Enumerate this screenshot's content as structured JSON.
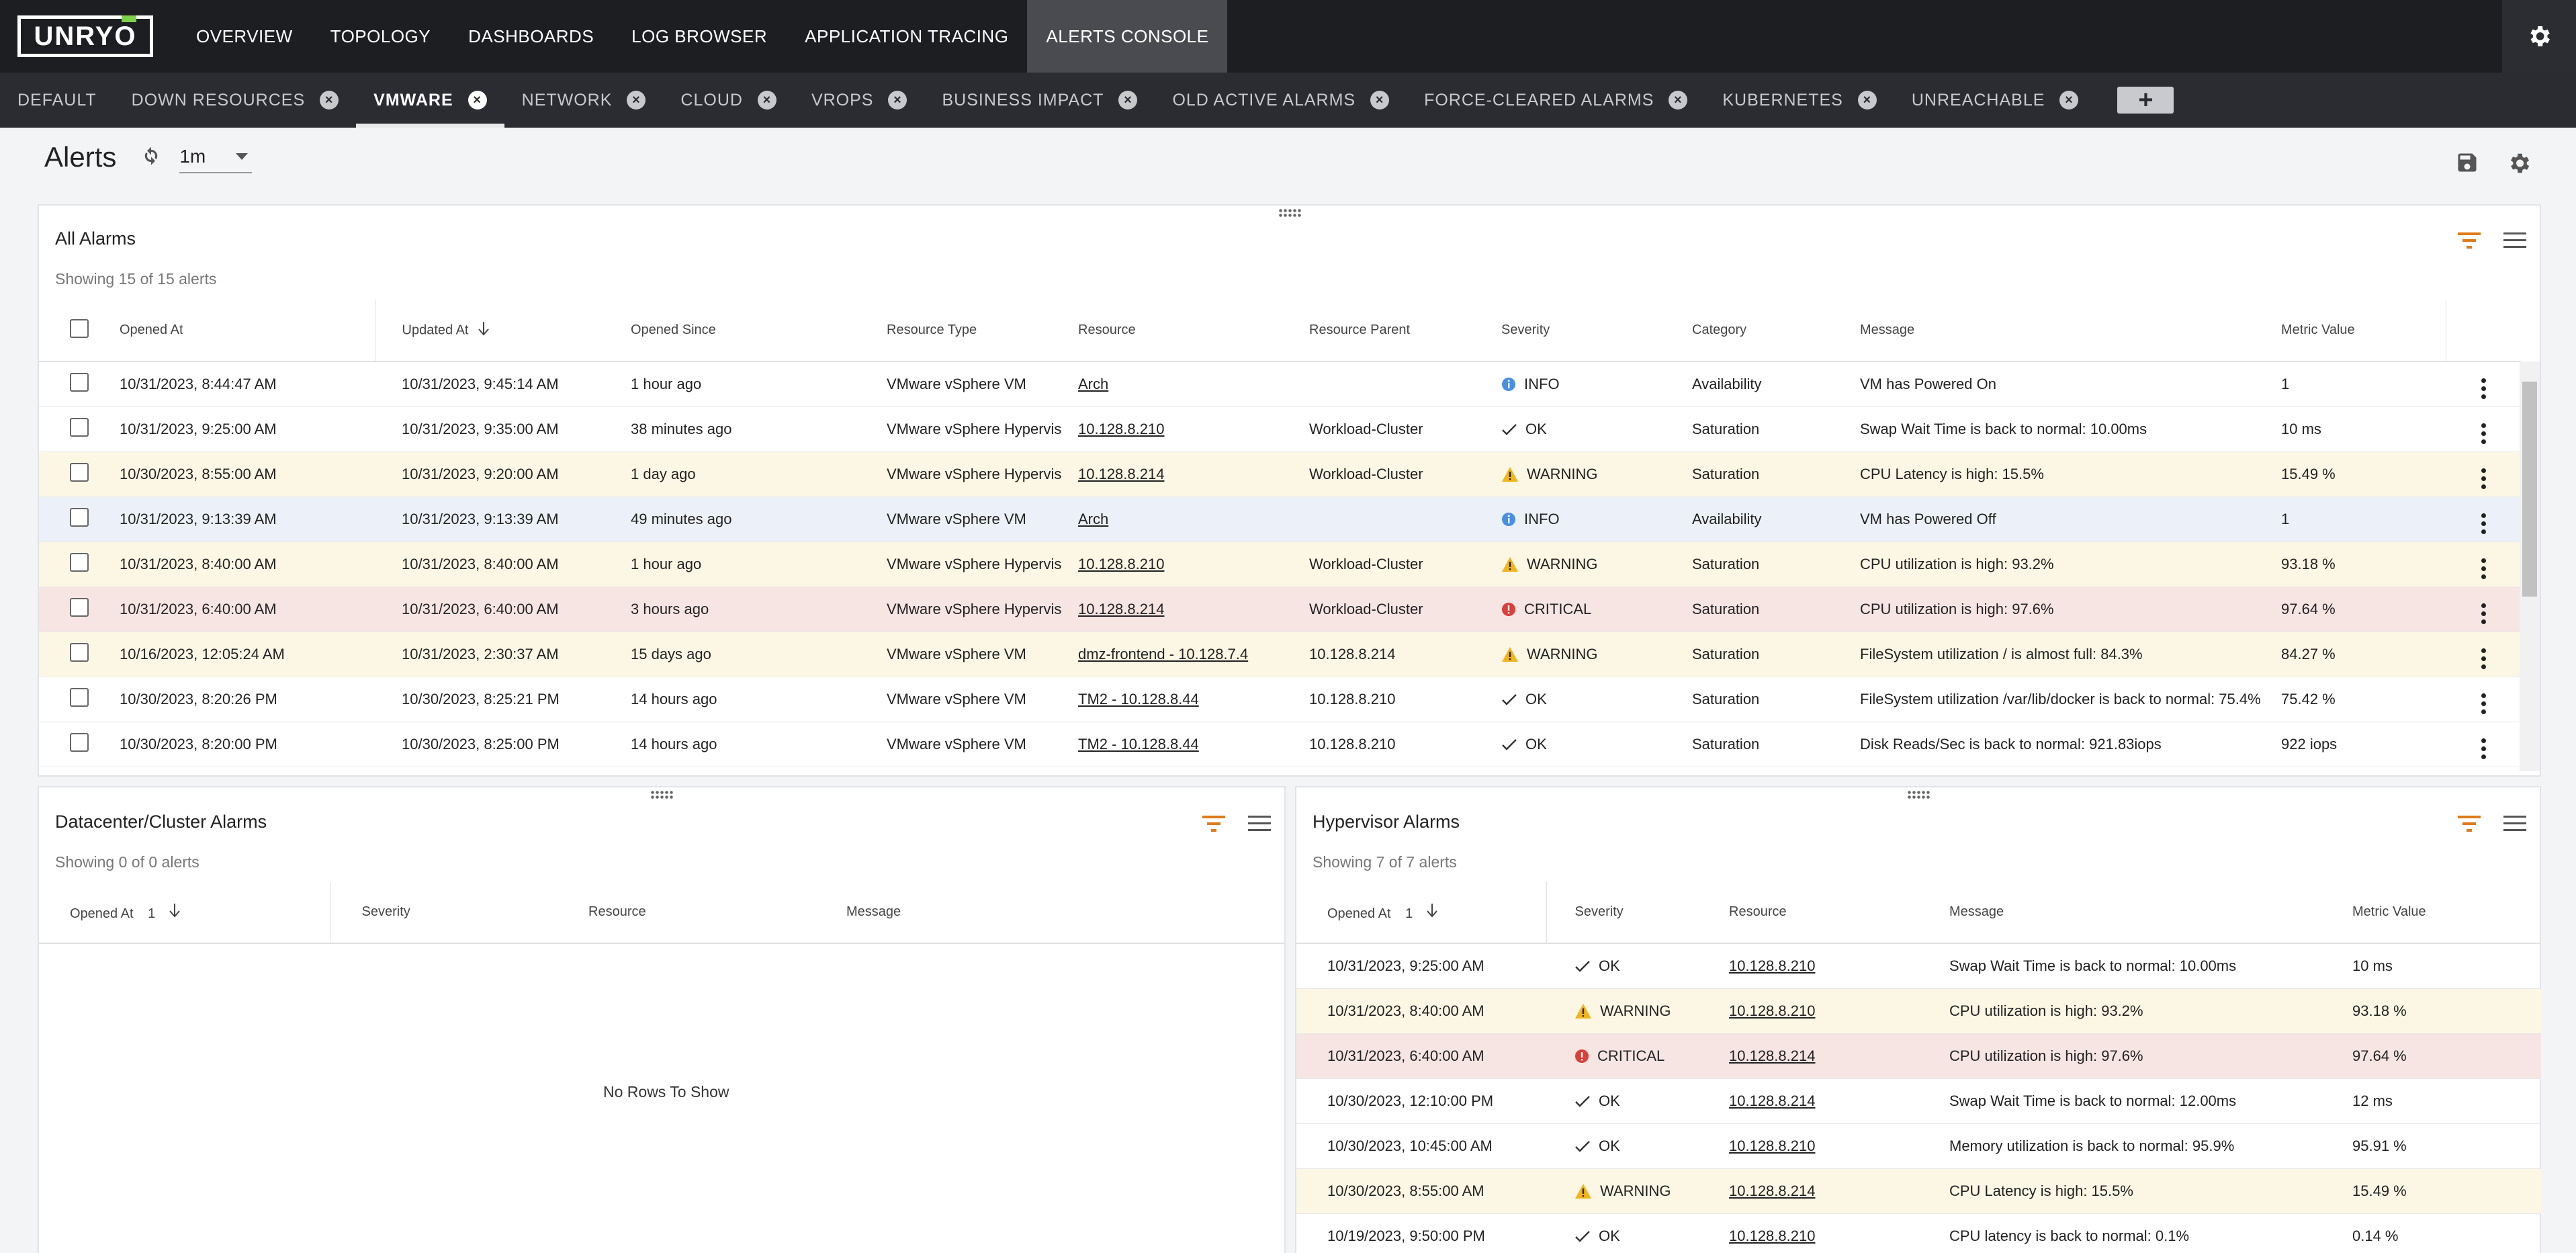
{
  "brand": {
    "logo_text": "UNRYO"
  },
  "nav": {
    "items": [
      "OVERVIEW",
      "TOPOLOGY",
      "DASHBOARDS",
      "LOG BROWSER",
      "APPLICATION TRACING",
      "ALERTS CONSOLE"
    ],
    "active": "ALERTS CONSOLE"
  },
  "tabs": [
    {
      "label": "DEFAULT",
      "closable": false
    },
    {
      "label": "DOWN RESOURCES",
      "closable": true
    },
    {
      "label": "VMWARE",
      "closable": true,
      "active": true
    },
    {
      "label": "NETWORK",
      "closable": true
    },
    {
      "label": "CLOUD",
      "closable": true
    },
    {
      "label": "VROPS",
      "closable": true
    },
    {
      "label": "BUSINESS IMPACT",
      "closable": true
    },
    {
      "label": "OLD ACTIVE ALARMS",
      "closable": true
    },
    {
      "label": "FORCE-CLEARED ALARMS",
      "closable": true
    },
    {
      "label": "KUBERNETES",
      "closable": true
    },
    {
      "label": "UNREACHABLE",
      "closable": true
    }
  ],
  "add_tab_label": "+",
  "alerts": {
    "title": "Alerts",
    "interval": "1m"
  },
  "colors": {
    "warning": "#f2b51c",
    "critical": "#d9403a",
    "info": "#4a90e2",
    "filter": "#e07b1a"
  },
  "all_alarms": {
    "title": "All Alarms",
    "subtitle": "Showing 15 of 15 alerts",
    "columns": [
      "Opened At",
      "Updated At",
      "Opened Since",
      "Resource Type",
      "Resource",
      "Resource Parent",
      "Severity",
      "Category",
      "Message",
      "Metric Value"
    ],
    "rows": [
      [
        "10/31/2023, 8:44:47 AM",
        "10/31/2023, 9:45:14 AM",
        "1 hour ago",
        "VMware vSphere VM",
        "Arch",
        "",
        "INFO",
        "Availability",
        "VM has Powered On",
        "1"
      ],
      [
        "10/31/2023, 9:25:00 AM",
        "10/31/2023, 9:35:00 AM",
        "38 minutes ago",
        "VMware vSphere Hypervis",
        "10.128.8.210",
        "Workload-Cluster",
        "OK",
        "Saturation",
        "Swap Wait Time is back to normal: 10.00ms",
        "10 ms"
      ],
      [
        "10/30/2023, 8:55:00 AM",
        "10/31/2023, 9:20:00 AM",
        "1 day ago",
        "VMware vSphere Hypervis",
        "10.128.8.214",
        "Workload-Cluster",
        "WARNING",
        "Saturation",
        "CPU Latency is high: 15.5%",
        "15.49 %"
      ],
      [
        "10/31/2023, 9:13:39 AM",
        "10/31/2023, 9:13:39 AM",
        "49 minutes ago",
        "VMware vSphere VM",
        "Arch",
        "",
        "INFO",
        "Availability",
        "VM has Powered Off",
        "1"
      ],
      [
        "10/31/2023, 8:40:00 AM",
        "10/31/2023, 8:40:00 AM",
        "1 hour ago",
        "VMware vSphere Hypervis",
        "10.128.8.210",
        "Workload-Cluster",
        "WARNING",
        "Saturation",
        "CPU utilization is high: 93.2%",
        "93.18 %"
      ],
      [
        "10/31/2023, 6:40:00 AM",
        "10/31/2023, 6:40:00 AM",
        "3 hours ago",
        "VMware vSphere Hypervis",
        "10.128.8.214",
        "Workload-Cluster",
        "CRITICAL",
        "Saturation",
        "CPU utilization is high: 97.6%",
        "97.64 %"
      ],
      [
        "10/16/2023, 12:05:24 AM",
        "10/31/2023, 2:30:37 AM",
        "15 days ago",
        "VMware vSphere VM",
        "dmz-frontend - 10.128.7.4",
        "10.128.8.214",
        "WARNING",
        "Saturation",
        "FileSystem utilization / is almost full: 84.3%",
        "84.27 %"
      ],
      [
        "10/30/2023, 8:20:26 PM",
        "10/30/2023, 8:25:21 PM",
        "14 hours ago",
        "VMware vSphere VM",
        "TM2 - 10.128.8.44",
        "10.128.8.210",
        "OK",
        "Saturation",
        "FileSystem utilization /var/lib/docker is back to normal: 75.4%",
        "75.42 %"
      ],
      [
        "10/30/2023, 8:20:00 PM",
        "10/30/2023, 8:25:00 PM",
        "14 hours ago",
        "VMware vSphere VM",
        "TM2 - 10.128.8.44",
        "10.128.8.210",
        "OK",
        "Saturation",
        "Disk Reads/Sec is back to normal: 921.83iops",
        "922 iops"
      ]
    ]
  },
  "dc_alarms": {
    "title": "Datacenter/Cluster Alarms",
    "subtitle": "Showing 0 of 0 alerts",
    "columns": [
      "Opened At",
      "Severity",
      "Resource",
      "Message"
    ],
    "sort_index": "1",
    "empty": "No Rows To Show"
  },
  "hv_alarms": {
    "title": "Hypervisor Alarms",
    "subtitle": "Showing 7 of 7 alerts",
    "columns": [
      "Opened At",
      "Severity",
      "Resource",
      "Message",
      "Metric Value"
    ],
    "sort_index": "1",
    "rows": [
      [
        "10/31/2023, 9:25:00 AM",
        "OK",
        "10.128.8.210",
        "Swap Wait Time is back to normal: 10.00ms",
        "10 ms"
      ],
      [
        "10/31/2023, 8:40:00 AM",
        "WARNING",
        "10.128.8.210",
        "CPU utilization is high: 93.2%",
        "93.18 %"
      ],
      [
        "10/31/2023, 6:40:00 AM",
        "CRITICAL",
        "10.128.8.214",
        "CPU utilization is high: 97.6%",
        "97.64 %"
      ],
      [
        "10/30/2023, 12:10:00 PM",
        "OK",
        "10.128.8.214",
        "Swap Wait Time is back to normal: 12.00ms",
        "12 ms"
      ],
      [
        "10/30/2023, 10:45:00 AM",
        "OK",
        "10.128.8.210",
        "Memory utilization is back to normal: 95.9%",
        "95.91 %"
      ],
      [
        "10/30/2023, 8:55:00 AM",
        "WARNING",
        "10.128.8.214",
        "CPU Latency is high: 15.5%",
        "15.49 %"
      ],
      [
        "10/19/2023, 9:50:00 PM",
        "OK",
        "10.128.8.210",
        "CPU latency is back to normal: 0.1%",
        "0.14 %"
      ]
    ]
  }
}
